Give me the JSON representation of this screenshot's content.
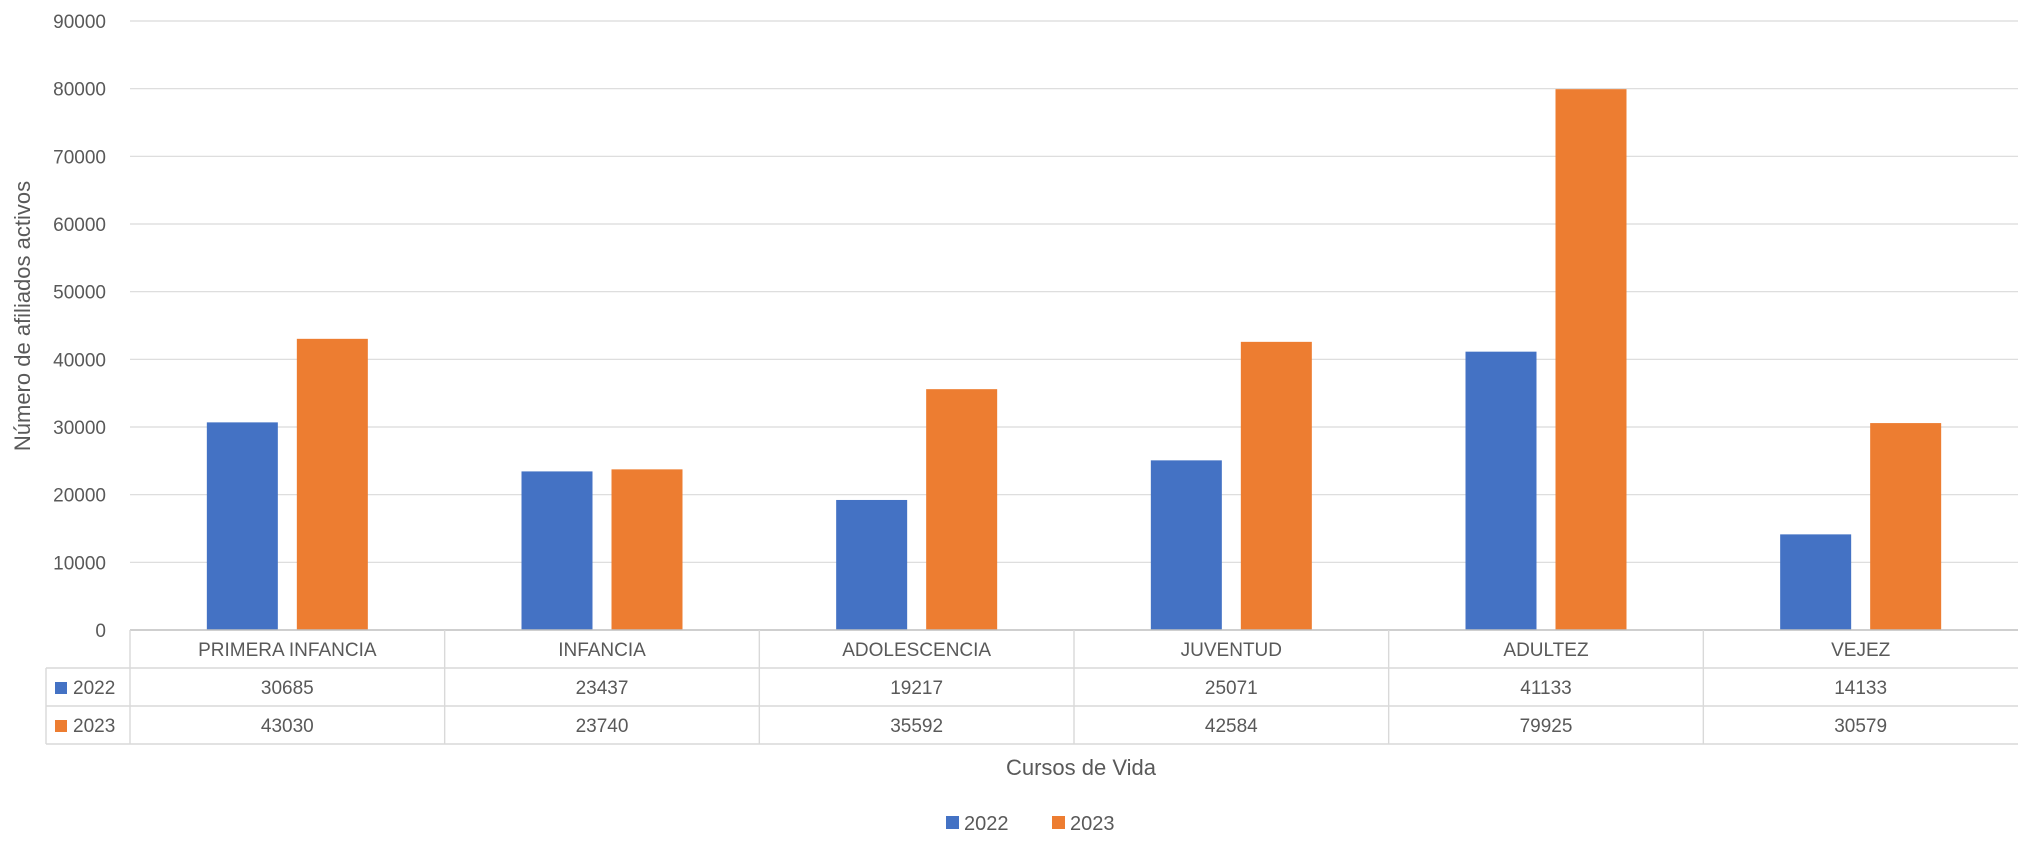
{
  "chart_data": {
    "type": "bar",
    "title": "",
    "xlabel": "Cursos de Vida",
    "ylabel": "Número de afiliados activos",
    "ylim": [
      0,
      90000
    ],
    "yticks": [
      "0",
      "10000",
      "20000",
      "30000",
      "40000",
      "50000",
      "60000",
      "70000",
      "80000",
      "90000"
    ],
    "categories": [
      "PRIMERA INFANCIA",
      "INFANCIA",
      "ADOLESCENCIA",
      "JUVENTUD",
      "ADULTEZ",
      "VEJEZ"
    ],
    "series": [
      {
        "name": "2022",
        "color": "#4472C4",
        "values": [
          30685,
          23437,
          19217,
          25071,
          41133,
          14133
        ]
      },
      {
        "name": "2023",
        "color": "#ED7D31",
        "values": [
          43030,
          23740,
          35592,
          42584,
          79925,
          30579
        ]
      }
    ],
    "grid": true,
    "legend": "bottom",
    "data_table": true
  }
}
